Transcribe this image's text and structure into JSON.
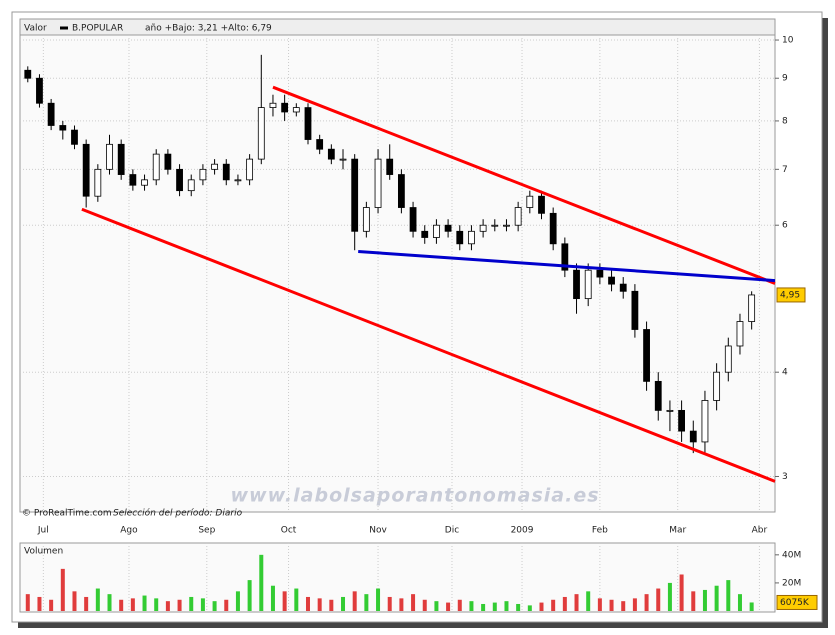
{
  "chart_data": {
    "type": "candlestick",
    "legend_label": "Valor",
    "series_name": "B.POPULAR",
    "legend_stats": "año +Bajo: 3,21 +Alto: 6,79",
    "credit": "© ProRealTime.com",
    "period": "Selección del período: Diario",
    "watermark": "www.labolsaporantonomasia.es",
    "log_scale": true,
    "grid": true,
    "up_color": "#ffffff",
    "down_color": "#000000",
    "x": [
      2,
      5,
      8,
      11,
      14,
      17,
      20,
      23,
      26,
      29,
      32,
      35,
      38,
      41,
      44,
      47,
      50,
      53,
      56,
      59,
      62,
      65,
      68,
      71,
      74,
      77,
      80,
      83,
      86,
      89,
      92,
      95,
      98,
      101,
      104,
      107,
      110,
      113,
      116,
      119,
      122,
      125,
      128,
      131,
      134,
      137,
      140,
      143,
      146,
      149,
      152,
      155,
      158,
      161,
      164,
      167,
      170,
      173,
      176,
      179,
      182,
      185,
      188
    ],
    "open": [
      9.2,
      9.0,
      8.4,
      7.9,
      7.8,
      7.5,
      6.5,
      7.0,
      7.5,
      6.9,
      6.7,
      6.8,
      7.3,
      7.0,
      6.6,
      6.8,
      7.0,
      7.1,
      6.8,
      6.8,
      7.2,
      8.3,
      8.4,
      8.2,
      8.3,
      7.6,
      7.4,
      7.2,
      7.2,
      5.9,
      6.3,
      7.2,
      6.9,
      6.3,
      5.9,
      5.8,
      6.0,
      5.9,
      5.7,
      5.9,
      6.0,
      6.0,
      6.0,
      6.3,
      6.5,
      6.2,
      5.7,
      5.3,
      4.9,
      5.3,
      5.2,
      5.1,
      5.0,
      4.5,
      3.9,
      3.6,
      3.6,
      3.4,
      3.3,
      3.7,
      4.0,
      4.3,
      4.6
    ],
    "high": [
      9.3,
      9.1,
      8.5,
      8.0,
      7.9,
      7.6,
      7.1,
      7.7,
      7.6,
      7.0,
      6.9,
      7.4,
      7.4,
      7.1,
      6.9,
      7.1,
      7.2,
      7.2,
      6.9,
      7.3,
      9.6,
      8.6,
      8.6,
      8.4,
      8.4,
      7.7,
      7.5,
      7.4,
      7.3,
      6.4,
      7.4,
      7.5,
      7.0,
      6.4,
      6.0,
      6.1,
      6.1,
      6.0,
      6.0,
      6.1,
      6.1,
      6.1,
      6.4,
      6.6,
      6.6,
      6.3,
      5.8,
      5.4,
      5.4,
      5.4,
      5.3,
      5.2,
      5.1,
      4.6,
      4.0,
      3.7,
      3.7,
      3.5,
      3.8,
      4.1,
      4.4,
      4.7,
      5.0
    ],
    "low": [
      8.9,
      8.3,
      7.8,
      7.6,
      7.4,
      6.3,
      6.4,
      6.9,
      6.8,
      6.6,
      6.6,
      6.7,
      6.9,
      6.5,
      6.5,
      6.7,
      6.9,
      6.7,
      6.7,
      6.7,
      7.1,
      8.1,
      8.0,
      8.1,
      7.5,
      7.3,
      7.1,
      7.0,
      5.6,
      5.8,
      6.2,
      6.8,
      6.2,
      5.8,
      5.7,
      5.7,
      5.8,
      5.6,
      5.6,
      5.8,
      5.9,
      5.9,
      5.9,
      6.2,
      6.1,
      5.6,
      5.2,
      4.7,
      4.8,
      5.1,
      5.0,
      4.9,
      4.4,
      3.8,
      3.5,
      3.4,
      3.3,
      3.2,
      3.2,
      3.6,
      3.9,
      4.2,
      4.5
    ],
    "close": [
      9.0,
      8.4,
      7.9,
      7.8,
      7.5,
      6.5,
      7.0,
      7.5,
      6.9,
      6.7,
      6.8,
      7.3,
      7.0,
      6.6,
      6.8,
      7.0,
      7.1,
      6.8,
      6.8,
      7.2,
      8.3,
      8.4,
      8.2,
      8.3,
      7.6,
      7.4,
      7.2,
      7.2,
      5.9,
      6.3,
      7.2,
      6.9,
      6.3,
      5.9,
      5.8,
      6.0,
      5.9,
      5.7,
      5.9,
      6.0,
      6.0,
      6.0,
      6.3,
      6.5,
      6.2,
      5.7,
      5.3,
      4.9,
      5.3,
      5.2,
      5.1,
      5.0,
      4.5,
      3.9,
      3.6,
      3.6,
      3.4,
      3.3,
      3.7,
      4.0,
      4.3,
      4.6,
      4.95
    ],
    "xlim": [
      0,
      194
    ],
    "xticks": [
      {
        "value": 6,
        "label": "Jul"
      },
      {
        "value": 28,
        "label": "Ago"
      },
      {
        "value": 48,
        "label": "Sep"
      },
      {
        "value": 69,
        "label": "Oct"
      },
      {
        "value": 92,
        "label": "Nov"
      },
      {
        "value": 111,
        "label": "Dic"
      },
      {
        "value": 129,
        "label": "2009"
      },
      {
        "value": 149,
        "label": "Feb"
      },
      {
        "value": 169,
        "label": "Mar"
      },
      {
        "value": 190,
        "label": "Abr"
      }
    ],
    "ylim": [
      2.72,
      10.14
    ],
    "yticks": [
      3,
      4,
      6,
      7,
      8,
      9,
      10
    ],
    "last_value": {
      "value": 4.95,
      "label": "4,95"
    },
    "trendlines": [
      {
        "color": "#ff0000",
        "x": [
          65,
          194
        ],
        "y": [
          8.78,
          5.11
        ]
      },
      {
        "color": "#ff0000",
        "x": [
          15.9,
          194
        ],
        "y": [
          6.27,
          2.96
        ]
      },
      {
        "color": "#0000cc",
        "x": [
          86.9,
          194
        ],
        "y": [
          5.58,
          5.15
        ]
      }
    ],
    "volume": {
      "title": "Volumen",
      "up_color": "#33cc33",
      "down_color": "#e03c3c",
      "values": [
        12,
        10,
        8,
        30,
        14,
        10,
        16,
        12,
        8,
        9,
        11,
        9,
        7,
        8,
        10,
        9,
        7,
        8,
        14,
        22,
        40,
        18,
        14,
        16,
        10,
        9,
        8,
        10,
        14,
        12,
        16,
        10,
        9,
        12,
        8,
        7,
        6,
        8,
        7,
        5,
        6,
        7,
        5,
        4,
        6,
        8,
        10,
        12,
        14,
        9,
        8,
        7,
        9,
        12,
        16,
        20,
        26,
        14,
        15,
        18,
        22,
        12,
        6.075
      ],
      "ylim": [
        0,
        47
      ],
      "yticks": [
        {
          "value": 40,
          "label": "40M"
        },
        {
          "value": 20,
          "label": "20M"
        }
      ],
      "last_value": {
        "value": 6.075,
        "label": "6075K"
      }
    }
  }
}
